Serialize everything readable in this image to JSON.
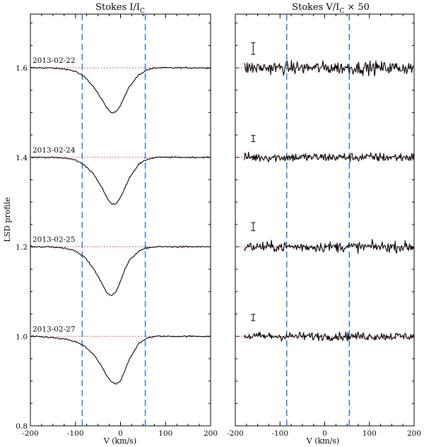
{
  "chart_data": [
    {
      "type": "line",
      "title": "Stokes I/I",
      "title_subscript": "C",
      "xlabel": "V (km/s)",
      "ylabel": "LSD profile",
      "xlim": [
        -200,
        200
      ],
      "ylim": [
        0.8,
        1.72
      ],
      "xticks": [
        "-200",
        "-100",
        "0",
        "100",
        "200"
      ],
      "yticks": [
        "0.8",
        "1.0",
        "1.2",
        "1.4",
        "1.6"
      ],
      "vlines_x": [
        -85,
        55
      ],
      "series": [
        {
          "name": "2013-02-22",
          "offset": 1.6,
          "x": [
            -200,
            -160,
            -120,
            -100,
            -80,
            -60,
            -40,
            -30,
            -20,
            -10,
            0,
            10,
            20,
            40,
            60,
            80,
            100,
            140,
            200
          ],
          "y": [
            1.6,
            1.6,
            1.597,
            1.592,
            1.58,
            1.558,
            1.527,
            1.51,
            1.5,
            1.502,
            1.516,
            1.538,
            1.558,
            1.584,
            1.596,
            1.6,
            1.6,
            1.6,
            1.6
          ]
        },
        {
          "name": "2013-02-24",
          "offset": 1.4,
          "x": [
            -200,
            -160,
            -120,
            -100,
            -80,
            -60,
            -40,
            -30,
            -20,
            -10,
            0,
            10,
            20,
            40,
            60,
            80,
            100,
            140,
            200
          ],
          "y": [
            1.4,
            1.4,
            1.398,
            1.394,
            1.383,
            1.363,
            1.33,
            1.31,
            1.296,
            1.296,
            1.31,
            1.332,
            1.355,
            1.384,
            1.396,
            1.4,
            1.4,
            1.4,
            1.4
          ]
        },
        {
          "name": "2013-02-25",
          "offset": 1.2,
          "x": [
            -200,
            -160,
            -120,
            -100,
            -80,
            -60,
            -40,
            -30,
            -20,
            -10,
            0,
            10,
            20,
            40,
            60,
            80,
            100,
            140,
            200
          ],
          "y": [
            1.2,
            1.2,
            1.197,
            1.19,
            1.177,
            1.152,
            1.116,
            1.097,
            1.09,
            1.1,
            1.124,
            1.15,
            1.17,
            1.19,
            1.198,
            1.2,
            1.2,
            1.2,
            1.2
          ]
        },
        {
          "name": "2013-02-27",
          "offset": 1.0,
          "x": [
            -200,
            -160,
            -120,
            -100,
            -80,
            -60,
            -40,
            -30,
            -20,
            -10,
            0,
            10,
            20,
            40,
            60,
            80,
            100,
            140,
            200
          ],
          "y": [
            1.0,
            0.998,
            0.993,
            0.988,
            0.978,
            0.96,
            0.93,
            0.91,
            0.898,
            0.893,
            0.9,
            0.925,
            0.95,
            0.983,
            0.997,
            1.0,
            1.0,
            1.0,
            1.0
          ]
        }
      ]
    },
    {
      "type": "line",
      "title": "Stokes V/I",
      "title_subscript": "C",
      "title_suffix": "× 50",
      "xlabel": "V (km/s)",
      "xlim": [
        -200,
        200
      ],
      "ylim": [
        0.8,
        1.72
      ],
      "xticks": [
        "-200",
        "-100",
        "0",
        "100",
        "200"
      ],
      "vlines_x": [
        -85,
        55
      ],
      "series": [
        {
          "name": "2013-02-22",
          "offset": 1.6,
          "noise_amplitude": 0.014,
          "errorbar_x": -160,
          "errorbar_center": 1.643,
          "errorbar_half": 0.013
        },
        {
          "name": "2013-02-24",
          "offset": 1.4,
          "noise_amplitude": 0.01,
          "errorbar_x": -160,
          "errorbar_center": 1.442,
          "errorbar_half": 0.007
        },
        {
          "name": "2013-02-25",
          "offset": 1.2,
          "noise_amplitude": 0.011,
          "errorbar_x": -160,
          "errorbar_center": 1.245,
          "errorbar_half": 0.009
        },
        {
          "name": "2013-02-27",
          "offset": 1.0,
          "noise_amplitude": 0.009,
          "errorbar_x": -160,
          "errorbar_center": 1.042,
          "errorbar_half": 0.007
        }
      ]
    }
  ],
  "colors": {
    "profile": "#000000",
    "continuum": "#d62728",
    "vline": "#1f77d4",
    "axis": "#000000"
  }
}
